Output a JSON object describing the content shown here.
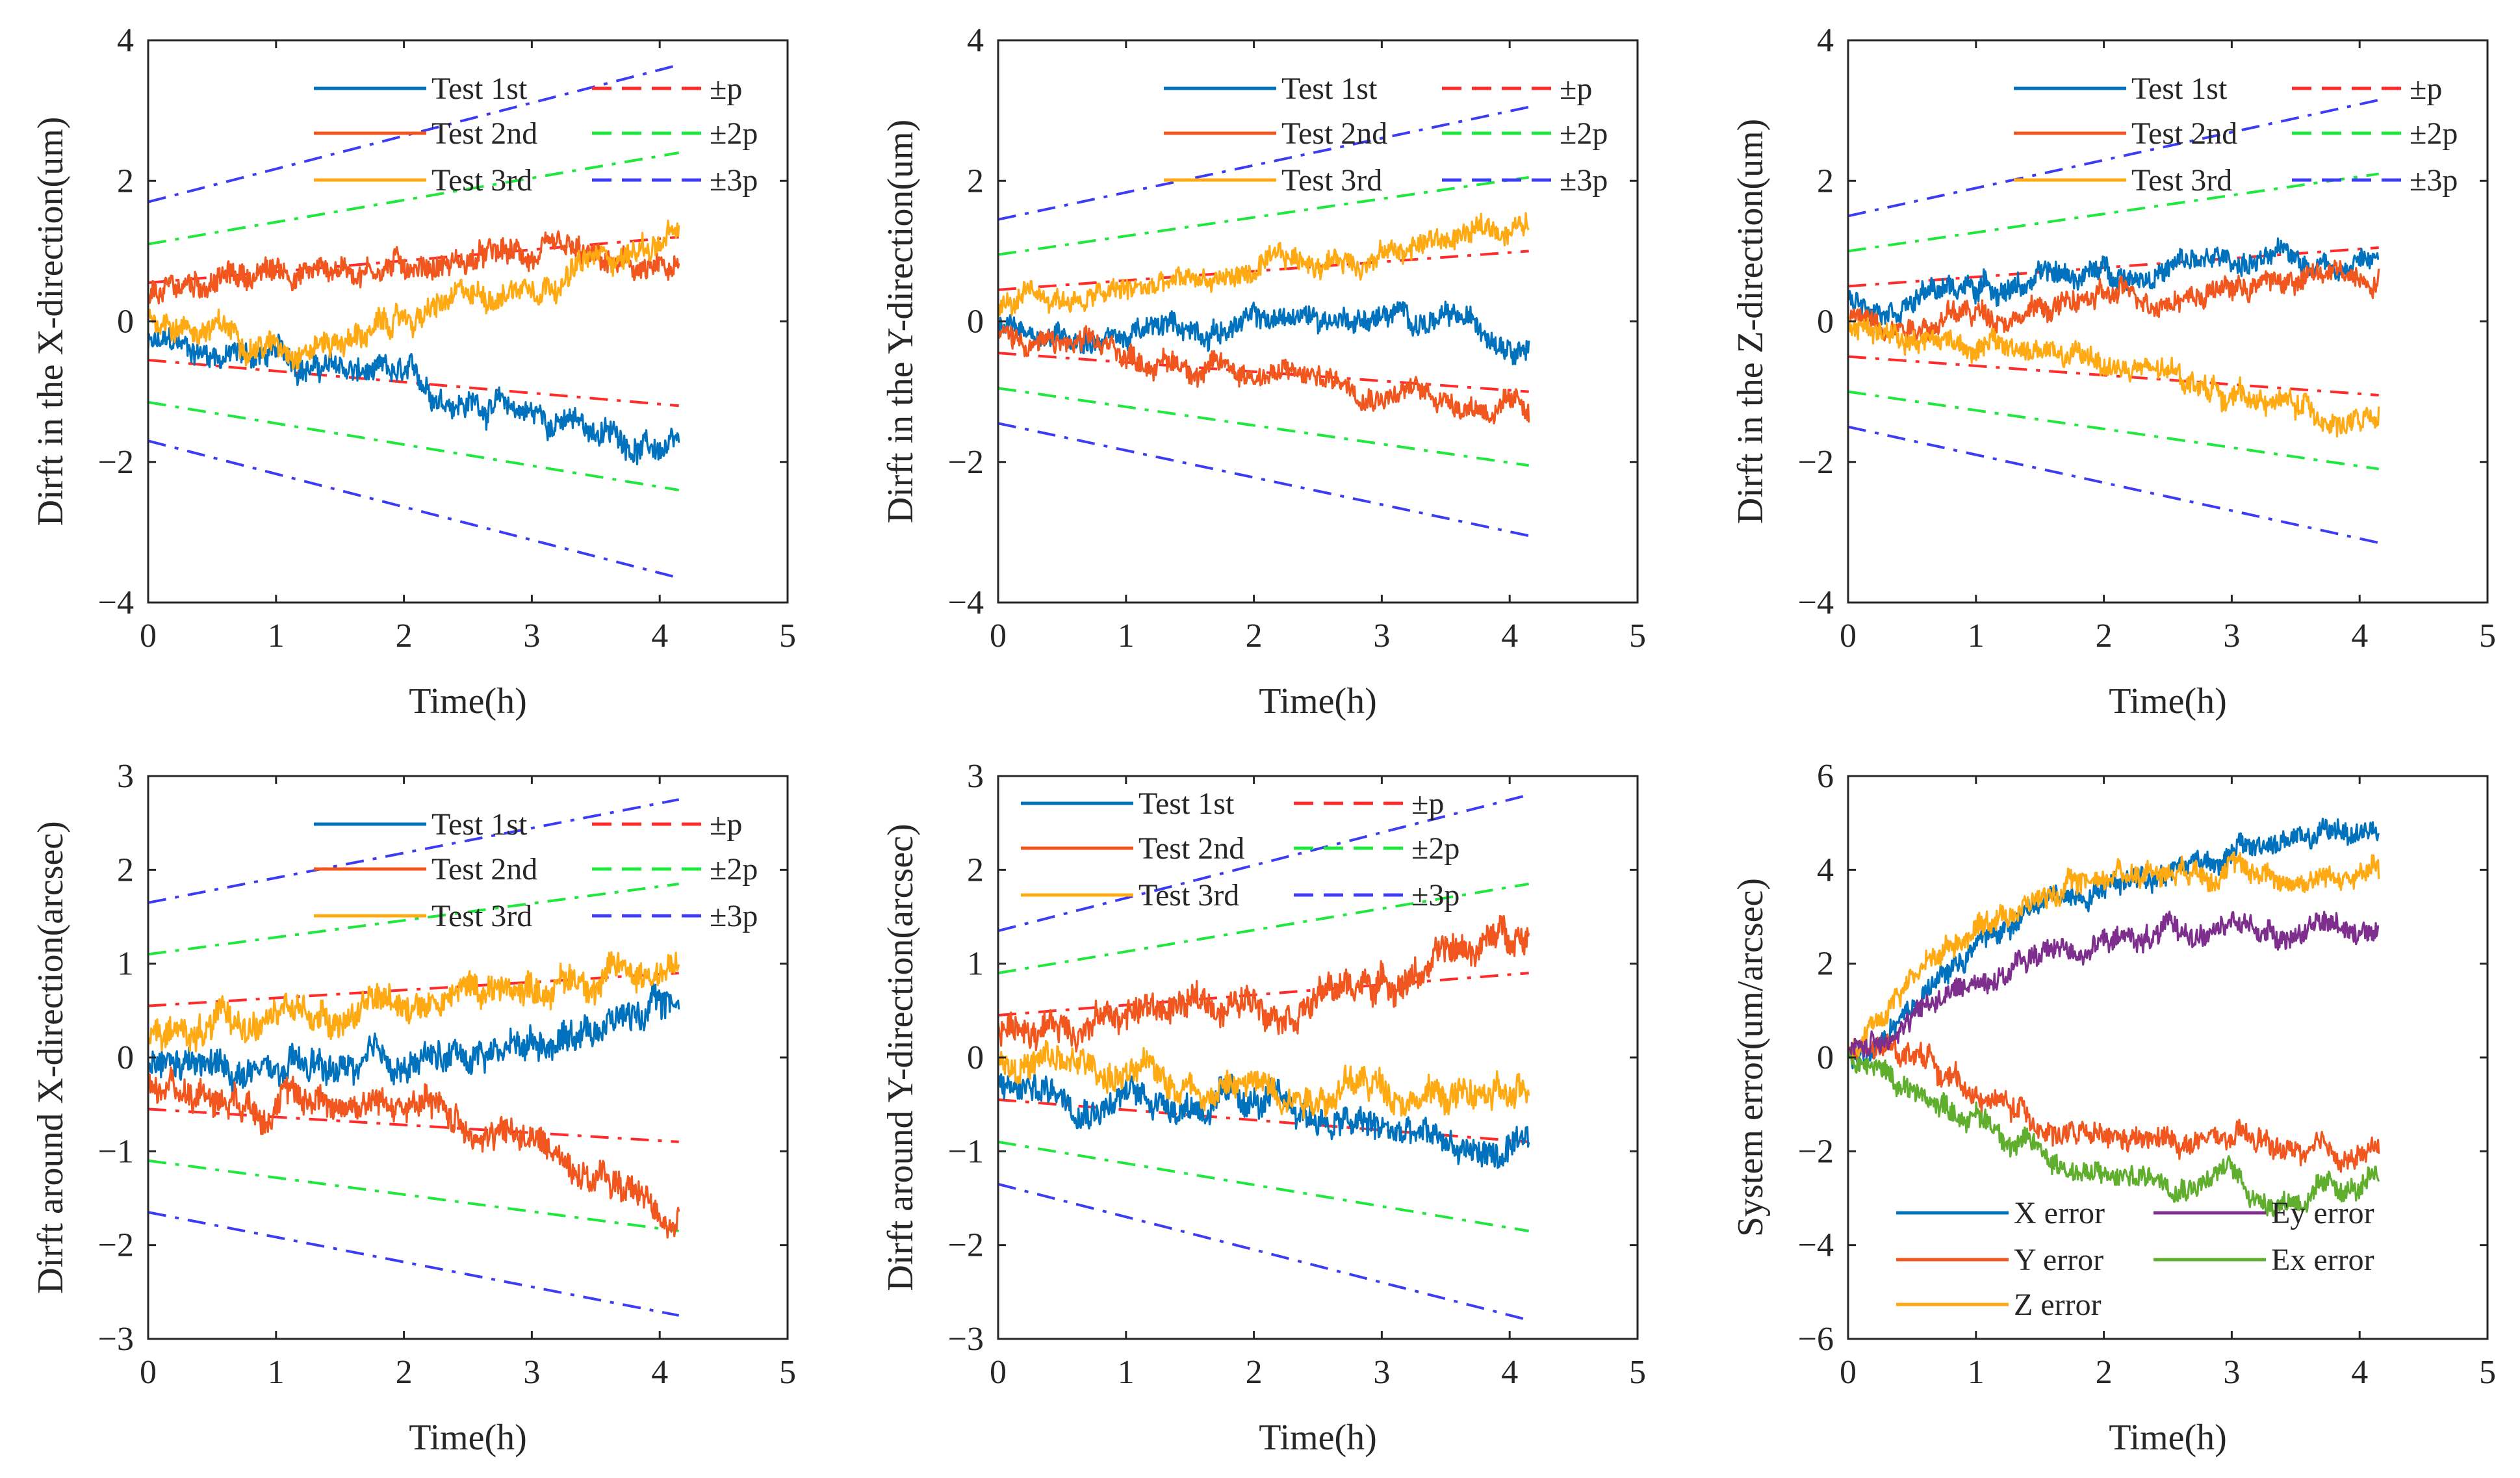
{
  "colors": {
    "test1": "#0072BD",
    "test2": "#F0561D",
    "test3": "#FFAA12",
    "ey": "#7E2F8E",
    "ex": "#5FAE2E",
    "p": "#FF2A2A",
    "p2": "#1EE83C",
    "p3": "#3C3CF5"
  },
  "chart_data": [
    {
      "type": "line",
      "title": "",
      "xlabel": "Time(h)",
      "ylabel": "Dirft in the X-direction(um)",
      "xlim": [
        0,
        5
      ],
      "ylim": [
        -4,
        4
      ],
      "xticks": [
        0,
        1,
        2,
        3,
        4,
        5
      ],
      "yticks": [
        -4,
        -2,
        0,
        2,
        4
      ],
      "grid": false,
      "legend_position": "top-right",
      "noise": 0.22,
      "series": [
        {
          "name": "Test 1st",
          "color": "test1",
          "x": [
            0,
            1,
            2,
            3,
            4.15
          ],
          "y": [
            -0.35,
            -0.5,
            -0.9,
            -1.3,
            -1.9
          ]
        },
        {
          "name": "Test 2nd",
          "color": "test2",
          "x": [
            0,
            0.5,
            1,
            2,
            3,
            4.15
          ],
          "y": [
            0.3,
            0.6,
            0.7,
            0.85,
            0.9,
            0.6
          ]
        },
        {
          "name": "Test 3rd",
          "color": "test3",
          "x": [
            0,
            1,
            1.6,
            2,
            3,
            4.15
          ],
          "y": [
            0.1,
            -0.3,
            -0.2,
            0.0,
            0.6,
            1.2
          ]
        }
      ],
      "bounds": [
        {
          "name": "±p",
          "color": "p",
          "x": [
            0,
            4.15
          ],
          "upper": [
            0.55,
            1.2
          ],
          "lower": [
            -0.55,
            -1.2
          ]
        },
        {
          "name": "±2p",
          "color": "p2",
          "x": [
            0,
            4.15
          ],
          "upper": [
            1.1,
            2.4
          ],
          "lower": [
            -1.15,
            -2.4
          ]
        },
        {
          "name": "±3p",
          "color": "p3",
          "x": [
            0,
            4.15
          ],
          "upper": [
            1.7,
            3.65
          ],
          "lower": [
            -1.7,
            -3.65
          ]
        }
      ]
    },
    {
      "type": "line",
      "title": "",
      "xlabel": "Time(h)",
      "ylabel": "Dirft in the Y-direction(um)",
      "xlim": [
        0,
        5
      ],
      "ylim": [
        -4,
        4
      ],
      "xticks": [
        0,
        1,
        2,
        3,
        4,
        5
      ],
      "yticks": [
        -4,
        -2,
        0,
        2,
        4
      ],
      "grid": false,
      "legend_position": "top-right",
      "noise": 0.2,
      "series": [
        {
          "name": "Test 1st",
          "color": "test1",
          "x": [
            0,
            1,
            2,
            3,
            4.15
          ],
          "y": [
            -0.1,
            -0.2,
            0.0,
            0.1,
            -0.2
          ]
        },
        {
          "name": "Test 2nd",
          "color": "test2",
          "x": [
            0,
            1,
            2,
            3,
            4.15
          ],
          "y": [
            -0.2,
            -0.5,
            -0.7,
            -0.9,
            -1.3
          ]
        },
        {
          "name": "Test 3rd",
          "color": "test3",
          "x": [
            0,
            1,
            2,
            3,
            4.15
          ],
          "y": [
            0.2,
            0.4,
            0.7,
            1.0,
            1.4
          ]
        }
      ],
      "bounds": [
        {
          "name": "±p",
          "color": "p",
          "x": [
            0,
            4.15
          ],
          "upper": [
            0.45,
            1.0
          ],
          "lower": [
            -0.45,
            -1.0
          ]
        },
        {
          "name": "±2p",
          "color": "p2",
          "x": [
            0,
            4.15
          ],
          "upper": [
            0.95,
            2.05
          ],
          "lower": [
            -0.95,
            -2.05
          ]
        },
        {
          "name": "±3p",
          "color": "p3",
          "x": [
            0,
            4.15
          ],
          "upper": [
            1.45,
            3.05
          ],
          "lower": [
            -1.45,
            -3.05
          ]
        }
      ]
    },
    {
      "type": "line",
      "title": "",
      "xlabel": "Time(h)",
      "ylabel": "Dirft in the Z-direction(um)",
      "xlim": [
        0,
        5
      ],
      "ylim": [
        -4,
        4
      ],
      "xticks": [
        0,
        1,
        2,
        3,
        4,
        5
      ],
      "yticks": [
        -4,
        -2,
        0,
        2,
        4
      ],
      "grid": false,
      "legend_position": "top-right",
      "noise": 0.2,
      "series": [
        {
          "name": "Test 1st",
          "color": "test1",
          "x": [
            0,
            1,
            2,
            3,
            4.15
          ],
          "y": [
            0.3,
            0.5,
            0.7,
            0.85,
            0.9
          ]
        },
        {
          "name": "Test 2nd",
          "color": "test2",
          "x": [
            0,
            1,
            2,
            3,
            4.15
          ],
          "y": [
            0.0,
            0.1,
            0.3,
            0.5,
            0.7
          ]
        },
        {
          "name": "Test 3rd",
          "color": "test3",
          "x": [
            0,
            1,
            2,
            3,
            4.15
          ],
          "y": [
            0.0,
            -0.3,
            -0.6,
            -1.0,
            -1.5
          ]
        }
      ],
      "bounds": [
        {
          "name": "±p",
          "color": "p",
          "x": [
            0,
            4.15
          ],
          "upper": [
            0.5,
            1.05
          ],
          "lower": [
            -0.5,
            -1.05
          ]
        },
        {
          "name": "±2p",
          "color": "p2",
          "x": [
            0,
            4.15
          ],
          "upper": [
            1.0,
            2.1
          ],
          "lower": [
            -1.0,
            -2.1
          ]
        },
        {
          "name": "±3p",
          "color": "p3",
          "x": [
            0,
            4.15
          ],
          "upper": [
            1.5,
            3.15
          ],
          "lower": [
            -1.5,
            -3.15
          ]
        }
      ]
    },
    {
      "type": "line",
      "title": "",
      "xlabel": "Time(h)",
      "ylabel": "Dirft around X-direction(arcsec)",
      "xlim": [
        0,
        5
      ],
      "ylim": [
        -3,
        3
      ],
      "xticks": [
        0,
        1,
        2,
        3,
        4,
        5
      ],
      "yticks": [
        -3,
        -2,
        -1,
        0,
        1,
        2,
        3
      ],
      "grid": false,
      "legend_position": "top-right",
      "noise": 0.2,
      "series": [
        {
          "name": "Test 1st",
          "color": "test1",
          "x": [
            0,
            1,
            2,
            3,
            4.15
          ],
          "y": [
            -0.1,
            -0.2,
            -0.1,
            0.2,
            0.6
          ]
        },
        {
          "name": "Test 2nd",
          "color": "test2",
          "x": [
            0,
            1,
            2,
            3,
            4.15
          ],
          "y": [
            -0.3,
            -0.4,
            -0.5,
            -0.9,
            -1.7
          ]
        },
        {
          "name": "Test 3rd",
          "color": "test3",
          "x": [
            0,
            1,
            2,
            3,
            4.15
          ],
          "y": [
            0.2,
            0.4,
            0.6,
            0.8,
            1.0
          ]
        }
      ],
      "bounds": [
        {
          "name": "±p",
          "color": "p",
          "x": [
            0,
            4.15
          ],
          "upper": [
            0.55,
            0.9
          ],
          "lower": [
            -0.55,
            -0.9
          ]
        },
        {
          "name": "±2p",
          "color": "p2",
          "x": [
            0,
            4.15
          ],
          "upper": [
            1.1,
            1.85
          ],
          "lower": [
            -1.1,
            -1.85
          ]
        },
        {
          "name": "±3p",
          "color": "p3",
          "x": [
            0,
            4.15
          ],
          "upper": [
            1.65,
            2.75
          ],
          "lower": [
            -1.65,
            -2.75
          ]
        }
      ]
    },
    {
      "type": "line",
      "title": "",
      "xlabel": "Time(h)",
      "ylabel": "Dirft around Y-direction(arcsec)",
      "xlim": [
        0,
        5
      ],
      "ylim": [
        -3,
        3
      ],
      "xticks": [
        0,
        1,
        2,
        3,
        4,
        5
      ],
      "yticks": [
        -3,
        -2,
        -1,
        0,
        1,
        2,
        3
      ],
      "grid": false,
      "legend_position": "top-left",
      "noise": 0.2,
      "series": [
        {
          "name": "Test 1st",
          "color": "test1",
          "x": [
            0,
            1,
            2,
            3,
            4.15
          ],
          "y": [
            -0.3,
            -0.4,
            -0.5,
            -0.8,
            -1.1
          ]
        },
        {
          "name": "Test 2nd",
          "color": "test2",
          "x": [
            0,
            1,
            2,
            3,
            4.15
          ],
          "y": [
            0.3,
            0.5,
            0.6,
            0.8,
            1.4
          ]
        },
        {
          "name": "Test 3rd",
          "color": "test3",
          "x": [
            0,
            1,
            2,
            3,
            4.15
          ],
          "y": [
            0.0,
            -0.2,
            -0.3,
            -0.3,
            -0.5
          ]
        }
      ],
      "bounds": [
        {
          "name": "±p",
          "color": "p",
          "x": [
            0,
            4.15
          ],
          "upper": [
            0.45,
            0.9
          ],
          "lower": [
            -0.45,
            -0.9
          ]
        },
        {
          "name": "±2p",
          "color": "p2",
          "x": [
            0,
            4.15
          ],
          "upper": [
            0.9,
            1.85
          ],
          "lower": [
            -0.9,
            -1.85
          ]
        },
        {
          "name": "±3p",
          "color": "p3",
          "x": [
            0,
            4.15
          ],
          "upper": [
            1.35,
            2.8
          ],
          "lower": [
            -1.35,
            -2.8
          ]
        }
      ]
    },
    {
      "type": "line",
      "title": "",
      "xlabel": "Time(h)",
      "ylabel": "System error(um/arcsec)",
      "xlim": [
        0,
        5
      ],
      "ylim": [
        -6,
        6
      ],
      "xticks": [
        0,
        1,
        2,
        3,
        4,
        5
      ],
      "yticks": [
        -6,
        -4,
        -2,
        0,
        2,
        4,
        6
      ],
      "grid": false,
      "legend_position": "bottom-left",
      "noise": 0.3,
      "series": [
        {
          "name": "X error",
          "color": "test1",
          "x": [
            0,
            0.5,
            1,
            1.5,
            2,
            3,
            4.15
          ],
          "y": [
            0,
            1.2,
            2.4,
            3.2,
            3.8,
            4.4,
            4.9
          ]
        },
        {
          "name": "Y error",
          "color": "test2",
          "x": [
            0,
            0.6,
            1,
            2,
            3,
            3.8,
            4.15
          ],
          "y": [
            0,
            0.1,
            -0.8,
            -1.9,
            -1.8,
            -2.2,
            -2.0
          ]
        },
        {
          "name": "Z error",
          "color": "test3",
          "x": [
            0,
            0.5,
            1,
            2,
            2.8,
            3.5,
            4.15
          ],
          "y": [
            0,
            1.8,
            2.9,
            3.9,
            4.2,
            3.8,
            3.9
          ]
        },
        {
          "name": "Ey error",
          "color": "ey",
          "x": [
            0,
            0.5,
            1,
            1.5,
            2,
            3,
            4.15
          ],
          "y": [
            0,
            0.9,
            1.6,
            2.2,
            2.5,
            2.7,
            2.8
          ]
        },
        {
          "name": "Ex error",
          "color": "ex",
          "x": [
            0,
            0.5,
            1,
            1.5,
            2,
            3,
            3.2,
            4.15
          ],
          "y": [
            0,
            -0.7,
            -1.2,
            -2.0,
            -2.6,
            -2.4,
            -3.0,
            -2.8
          ]
        }
      ],
      "bounds": []
    }
  ]
}
